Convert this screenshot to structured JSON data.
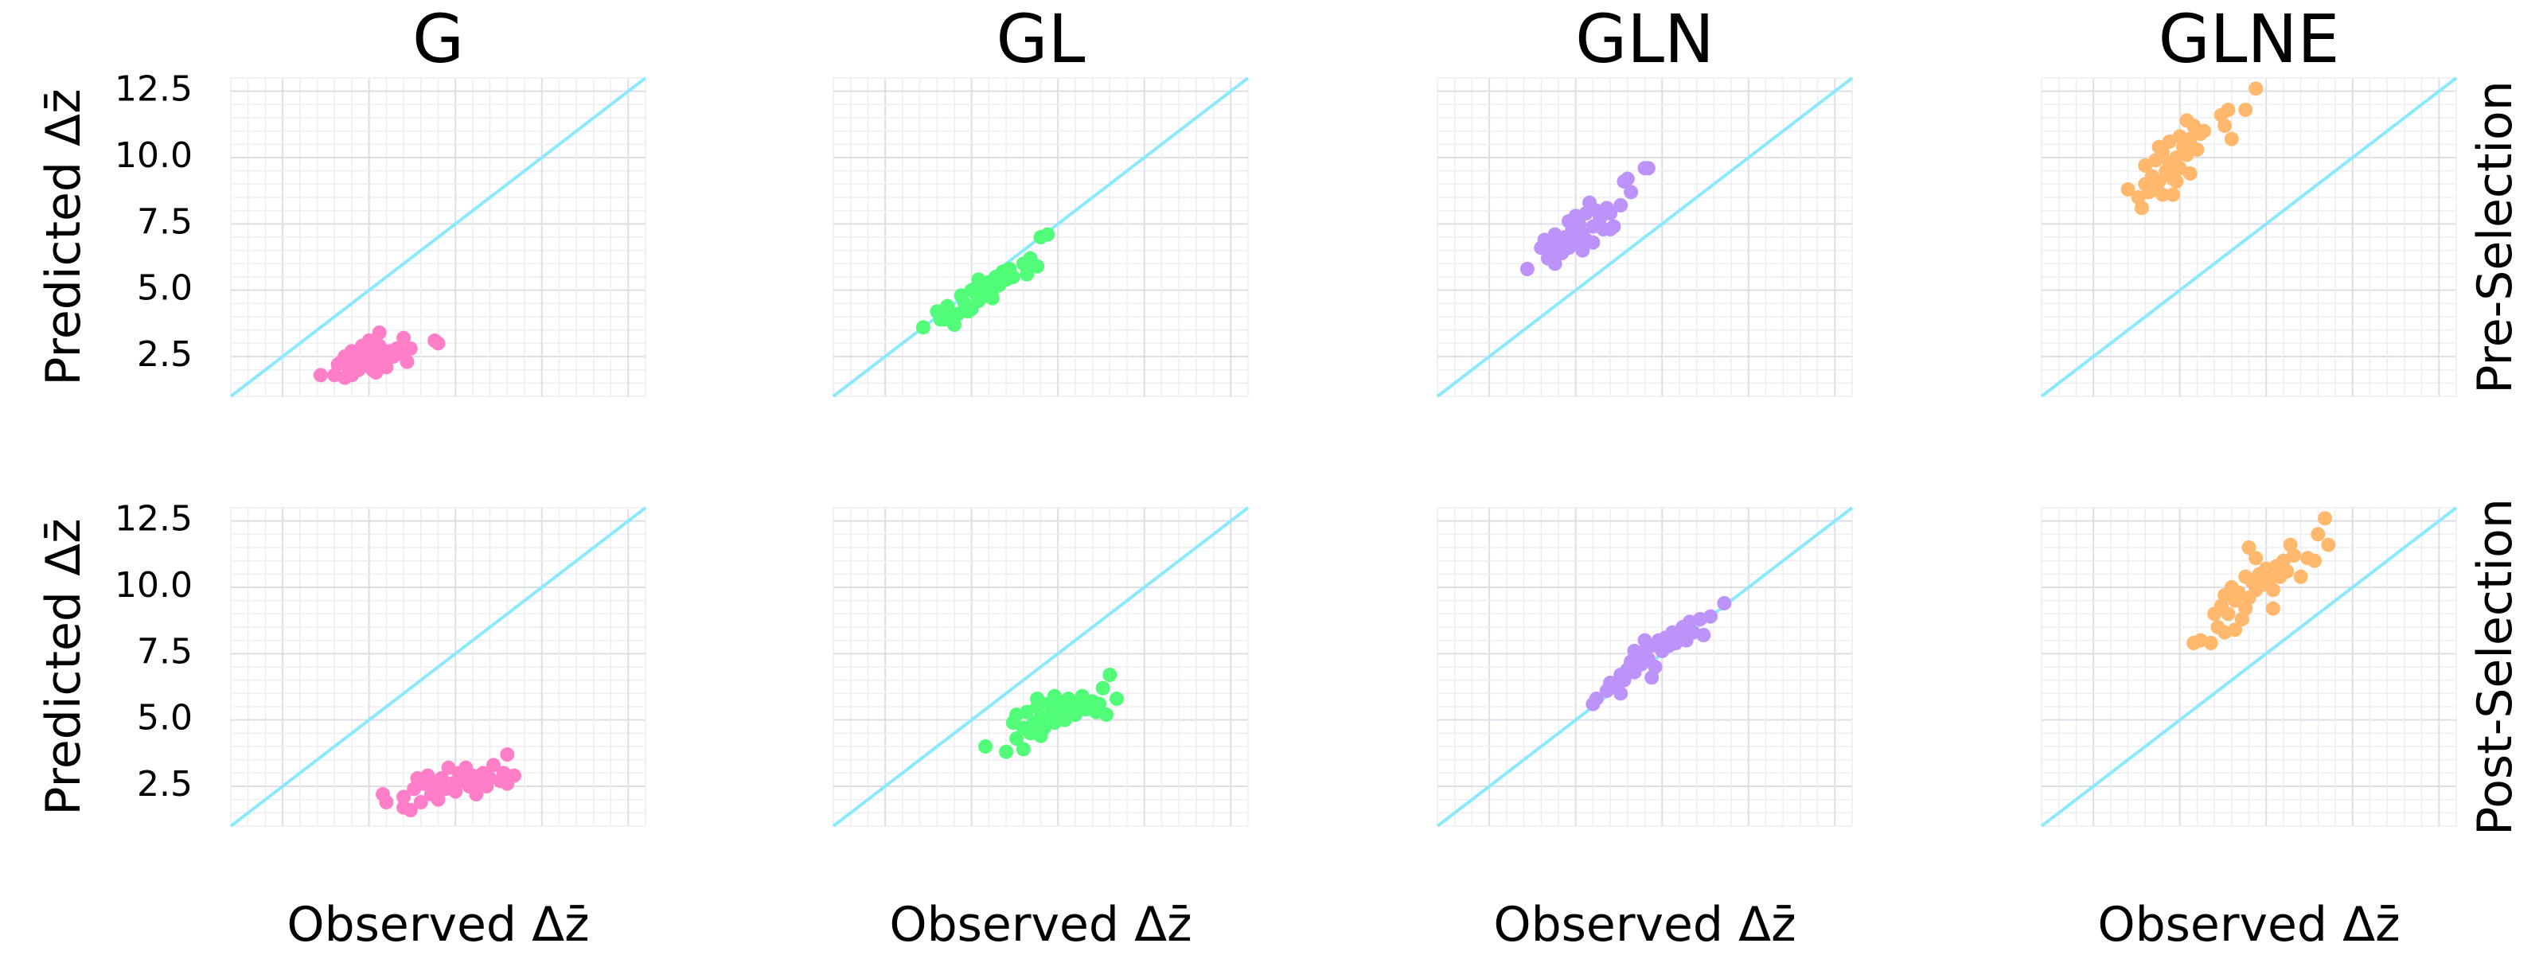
{
  "chart_data": {
    "type": "scatter",
    "layout": "2x4 grid",
    "columns": [
      "G",
      "GL",
      "GLN",
      "GLNE"
    ],
    "rows": [
      "Pre-Selection",
      "Post-Selection"
    ],
    "xlabel": "Observed Δz̄",
    "ylabel": "Predicted Δz̄",
    "xlim": [
      1,
      13
    ],
    "ylim": [
      1,
      13
    ],
    "yticks": [
      2.5,
      5.0,
      7.5,
      10.0,
      12.5
    ],
    "ytick_labels": [
      "2.5",
      "5.0",
      "7.5",
      "10.0",
      "12.5"
    ],
    "xticks": [
      2.5,
      5.0,
      7.5,
      10.0,
      12.5
    ],
    "xtick_labels_shown": false,
    "grid": true,
    "minor_grid_step": 0.5,
    "reference_line": {
      "type": "identity y=x",
      "color": "#8be9fd"
    },
    "colors": {
      "G": "#ff7ec7",
      "GL": "#50fc78",
      "GLN": "#bd93f9",
      "GLNE": "#ffb86c"
    },
    "panels": [
      {
        "row": "Pre-Selection",
        "column": "G",
        "points": [
          [
            3.6,
            1.8
          ],
          [
            4.0,
            1.8
          ],
          [
            4.3,
            1.7
          ],
          [
            4.5,
            1.8
          ],
          [
            5.2,
            1.9
          ],
          [
            4.2,
            2.3
          ],
          [
            4.4,
            2.1
          ],
          [
            4.6,
            2.4
          ],
          [
            4.7,
            2.0
          ],
          [
            4.8,
            2.6
          ],
          [
            4.9,
            2.3
          ],
          [
            5.0,
            2.8
          ],
          [
            5.1,
            2.5
          ],
          [
            5.2,
            2.2
          ],
          [
            5.3,
            2.9
          ],
          [
            5.4,
            2.6
          ],
          [
            5.5,
            2.4
          ],
          [
            5.6,
            2.7
          ],
          [
            5.7,
            2.5
          ],
          [
            5.8,
            2.8
          ],
          [
            4.5,
            2.7
          ],
          [
            4.3,
            2.5
          ],
          [
            4.1,
            2.2
          ],
          [
            4.8,
            2.9
          ],
          [
            5.0,
            3.1
          ],
          [
            5.3,
            3.4
          ],
          [
            5.9,
            2.6
          ],
          [
            6.0,
            3.2
          ],
          [
            6.2,
            2.8
          ],
          [
            6.1,
            2.3
          ],
          [
            6.9,
            3.1
          ],
          [
            7.0,
            3.0
          ],
          [
            5.5,
            2.1
          ],
          [
            4.6,
            2.2
          ],
          [
            5.1,
            2.0
          ]
        ]
      },
      {
        "row": "Pre-Selection",
        "column": "GL",
        "points": [
          [
            3.6,
            3.6
          ],
          [
            4.2,
            3.9
          ],
          [
            4.5,
            3.7
          ],
          [
            4.0,
            4.2
          ],
          [
            4.3,
            4.4
          ],
          [
            4.6,
            4.1
          ],
          [
            4.8,
            4.5
          ],
          [
            5.0,
            4.3
          ],
          [
            4.7,
            4.8
          ],
          [
            5.2,
            4.6
          ],
          [
            5.1,
            4.9
          ],
          [
            5.4,
            4.8
          ],
          [
            5.3,
            5.1
          ],
          [
            5.6,
            5.0
          ],
          [
            5.5,
            5.3
          ],
          [
            5.8,
            5.2
          ],
          [
            5.7,
            5.5
          ],
          [
            6.0,
            5.4
          ],
          [
            5.9,
            5.7
          ],
          [
            6.2,
            5.5
          ],
          [
            6.1,
            5.8
          ],
          [
            5.2,
            5.4
          ],
          [
            5.0,
            5.0
          ],
          [
            4.9,
            4.2
          ],
          [
            4.4,
            4.0
          ],
          [
            6.5,
            6.0
          ],
          [
            6.7,
            6.2
          ],
          [
            6.9,
            5.9
          ],
          [
            6.6,
            5.6
          ],
          [
            7.0,
            7.0
          ],
          [
            7.2,
            7.1
          ],
          [
            5.6,
            4.7
          ],
          [
            4.1,
            3.9
          ]
        ]
      },
      {
        "row": "Pre-Selection",
        "column": "GLN",
        "points": [
          [
            3.6,
            5.8
          ],
          [
            4.2,
            6.2
          ],
          [
            4.4,
            6.0
          ],
          [
            4.0,
            6.6
          ],
          [
            4.1,
            6.9
          ],
          [
            4.3,
            6.5
          ],
          [
            4.5,
            6.8
          ],
          [
            4.6,
            6.4
          ],
          [
            4.7,
            7.0
          ],
          [
            4.8,
            6.6
          ],
          [
            4.9,
            7.3
          ],
          [
            5.0,
            6.8
          ],
          [
            5.1,
            7.5
          ],
          [
            5.2,
            7.1
          ],
          [
            5.3,
            6.9
          ],
          [
            5.0,
            7.8
          ],
          [
            5.3,
            7.9
          ],
          [
            5.5,
            7.4
          ],
          [
            5.6,
            8.0
          ],
          [
            5.4,
            8.3
          ],
          [
            5.7,
            7.7
          ],
          [
            5.9,
            8.1
          ],
          [
            6.0,
            7.9
          ],
          [
            5.8,
            7.3
          ],
          [
            5.5,
            6.8
          ],
          [
            6.1,
            7.4
          ],
          [
            6.0,
            7.3
          ],
          [
            4.4,
            7.1
          ],
          [
            4.8,
            7.6
          ],
          [
            5.2,
            6.5
          ],
          [
            6.3,
            8.2
          ],
          [
            6.6,
            8.7
          ],
          [
            6.4,
            9.1
          ],
          [
            6.5,
            9.2
          ],
          [
            7.0,
            9.6
          ],
          [
            7.1,
            9.6
          ]
        ]
      },
      {
        "row": "Pre-Selection",
        "column": "GLNE",
        "points": [
          [
            3.5,
            8.8
          ],
          [
            3.8,
            8.5
          ],
          [
            3.9,
            8.1
          ],
          [
            4.0,
            9.0
          ],
          [
            4.1,
            8.7
          ],
          [
            4.3,
            8.8
          ],
          [
            4.5,
            8.6
          ],
          [
            4.8,
            8.6
          ],
          [
            4.2,
            9.3
          ],
          [
            4.4,
            9.1
          ],
          [
            4.6,
            9.5
          ],
          [
            4.8,
            9.2
          ],
          [
            4.0,
            9.7
          ],
          [
            4.3,
            9.9
          ],
          [
            4.5,
            10.2
          ],
          [
            4.7,
            9.8
          ],
          [
            4.9,
            10.0
          ],
          [
            5.0,
            9.6
          ],
          [
            5.1,
            10.4
          ],
          [
            5.2,
            10.1
          ],
          [
            4.4,
            10.4
          ],
          [
            4.7,
            10.6
          ],
          [
            5.0,
            10.8
          ],
          [
            5.3,
            10.7
          ],
          [
            5.5,
            10.3
          ],
          [
            5.6,
            10.9
          ],
          [
            5.4,
            11.2
          ],
          [
            5.2,
            11.4
          ],
          [
            5.7,
            11.0
          ],
          [
            5.3,
            9.4
          ],
          [
            4.9,
            9.1
          ],
          [
            6.2,
            11.6
          ],
          [
            6.4,
            11.8
          ],
          [
            6.3,
            11.2
          ],
          [
            6.5,
            10.7
          ],
          [
            6.9,
            11.8
          ],
          [
            7.2,
            12.6
          ]
        ]
      },
      {
        "row": "Post-Selection",
        "column": "G",
        "points": [
          [
            5.4,
            2.2
          ],
          [
            5.5,
            1.9
          ],
          [
            6.0,
            1.7
          ],
          [
            6.2,
            1.6
          ],
          [
            6.0,
            2.1
          ],
          [
            6.3,
            2.4
          ],
          [
            6.5,
            1.9
          ],
          [
            6.6,
            2.6
          ],
          [
            6.7,
            2.9
          ],
          [
            6.8,
            2.2
          ],
          [
            6.9,
            2.5
          ],
          [
            7.0,
            2.0
          ],
          [
            7.1,
            2.8
          ],
          [
            7.2,
            2.4
          ],
          [
            7.3,
            3.2
          ],
          [
            7.4,
            2.6
          ],
          [
            7.5,
            2.3
          ],
          [
            7.6,
            3.0
          ],
          [
            7.7,
            2.7
          ],
          [
            7.8,
            3.2
          ],
          [
            7.9,
            2.5
          ],
          [
            8.0,
            2.9
          ],
          [
            8.1,
            2.2
          ],
          [
            8.2,
            2.7
          ],
          [
            8.3,
            3.0
          ],
          [
            8.4,
            2.5
          ],
          [
            8.5,
            2.8
          ],
          [
            8.6,
            3.3
          ],
          [
            8.8,
            2.7
          ],
          [
            8.9,
            3.0
          ],
          [
            9.0,
            2.6
          ],
          [
            9.2,
            2.9
          ],
          [
            9.0,
            3.7
          ],
          [
            7.0,
            2.7
          ],
          [
            6.4,
            2.8
          ]
        ]
      },
      {
        "row": "Post-Selection",
        "column": "GL",
        "points": [
          [
            5.4,
            4.0
          ],
          [
            6.0,
            3.8
          ],
          [
            6.5,
            3.9
          ],
          [
            6.3,
            4.3
          ],
          [
            6.7,
            4.5
          ],
          [
            6.2,
            4.9
          ],
          [
            6.3,
            5.2
          ],
          [
            6.5,
            4.7
          ],
          [
            6.6,
            5.3
          ],
          [
            6.8,
            4.9
          ],
          [
            6.9,
            5.5
          ],
          [
            7.0,
            5.1
          ],
          [
            7.1,
            4.7
          ],
          [
            7.2,
            5.6
          ],
          [
            7.3,
            5.2
          ],
          [
            7.4,
            4.9
          ],
          [
            7.5,
            5.7
          ],
          [
            7.6,
            5.4
          ],
          [
            7.7,
            5.0
          ],
          [
            7.8,
            5.8
          ],
          [
            7.9,
            5.5
          ],
          [
            8.0,
            5.2
          ],
          [
            8.1,
            5.6
          ],
          [
            8.2,
            5.9
          ],
          [
            8.3,
            5.4
          ],
          [
            8.5,
            5.7
          ],
          [
            8.6,
            5.3
          ],
          [
            8.7,
            5.6
          ],
          [
            8.8,
            6.2
          ],
          [
            8.9,
            5.2
          ],
          [
            9.2,
            5.8
          ],
          [
            9.0,
            6.7
          ],
          [
            7.0,
            4.4
          ],
          [
            7.4,
            5.9
          ],
          [
            6.9,
            5.8
          ]
        ]
      },
      {
        "row": "Post-Selection",
        "column": "GLN",
        "points": [
          [
            5.5,
            5.6
          ],
          [
            5.6,
            5.8
          ],
          [
            5.9,
            6.1
          ],
          [
            6.0,
            6.4
          ],
          [
            6.2,
            6.2
          ],
          [
            6.3,
            6.7
          ],
          [
            6.4,
            6.5
          ],
          [
            6.5,
            6.9
          ],
          [
            6.6,
            7.2
          ],
          [
            6.7,
            6.8
          ],
          [
            6.8,
            7.4
          ],
          [
            6.9,
            7.1
          ],
          [
            7.0,
            7.6
          ],
          [
            7.1,
            7.3
          ],
          [
            7.2,
            7.8
          ],
          [
            7.3,
            7.0
          ],
          [
            7.4,
            8.0
          ],
          [
            7.5,
            7.6
          ],
          [
            7.6,
            8.1
          ],
          [
            7.7,
            7.8
          ],
          [
            7.8,
            8.3
          ],
          [
            7.9,
            7.9
          ],
          [
            8.0,
            8.1
          ],
          [
            8.1,
            8.5
          ],
          [
            8.2,
            8.0
          ],
          [
            8.3,
            8.7
          ],
          [
            8.4,
            8.3
          ],
          [
            8.6,
            8.8
          ],
          [
            8.7,
            8.2
          ],
          [
            8.9,
            8.9
          ],
          [
            9.3,
            9.4
          ],
          [
            7.2,
            6.6
          ],
          [
            6.7,
            7.6
          ],
          [
            7.0,
            8.0
          ],
          [
            6.3,
            6.0
          ]
        ]
      },
      {
        "row": "Post-Selection",
        "column": "GLNE",
        "points": [
          [
            5.4,
            7.9
          ],
          [
            5.6,
            8.0
          ],
          [
            5.9,
            7.9
          ],
          [
            6.1,
            8.5
          ],
          [
            6.3,
            8.3
          ],
          [
            6.6,
            8.4
          ],
          [
            6.0,
            9.0
          ],
          [
            6.2,
            9.3
          ],
          [
            6.4,
            9.0
          ],
          [
            6.6,
            9.5
          ],
          [
            6.8,
            8.8
          ],
          [
            6.9,
            9.2
          ],
          [
            6.3,
            9.7
          ],
          [
            6.5,
            10.0
          ],
          [
            6.7,
            9.8
          ],
          [
            7.0,
            9.6
          ],
          [
            7.1,
            10.2
          ],
          [
            7.2,
            9.9
          ],
          [
            7.3,
            10.5
          ],
          [
            7.4,
            10.1
          ],
          [
            7.5,
            10.7
          ],
          [
            7.6,
            10.3
          ],
          [
            7.7,
            9.9
          ],
          [
            7.8,
            10.8
          ],
          [
            7.9,
            10.4
          ],
          [
            8.0,
            11.0
          ],
          [
            8.1,
            10.6
          ],
          [
            8.2,
            11.6
          ],
          [
            8.3,
            11.2
          ],
          [
            8.5,
            10.4
          ],
          [
            8.7,
            11.1
          ],
          [
            8.9,
            11.0
          ],
          [
            7.0,
            11.5
          ],
          [
            7.2,
            11.1
          ],
          [
            9.2,
            12.6
          ],
          [
            9.0,
            12.0
          ],
          [
            9.3,
            11.6
          ],
          [
            7.7,
            9.2
          ],
          [
            6.9,
            10.4
          ]
        ]
      }
    ]
  }
}
